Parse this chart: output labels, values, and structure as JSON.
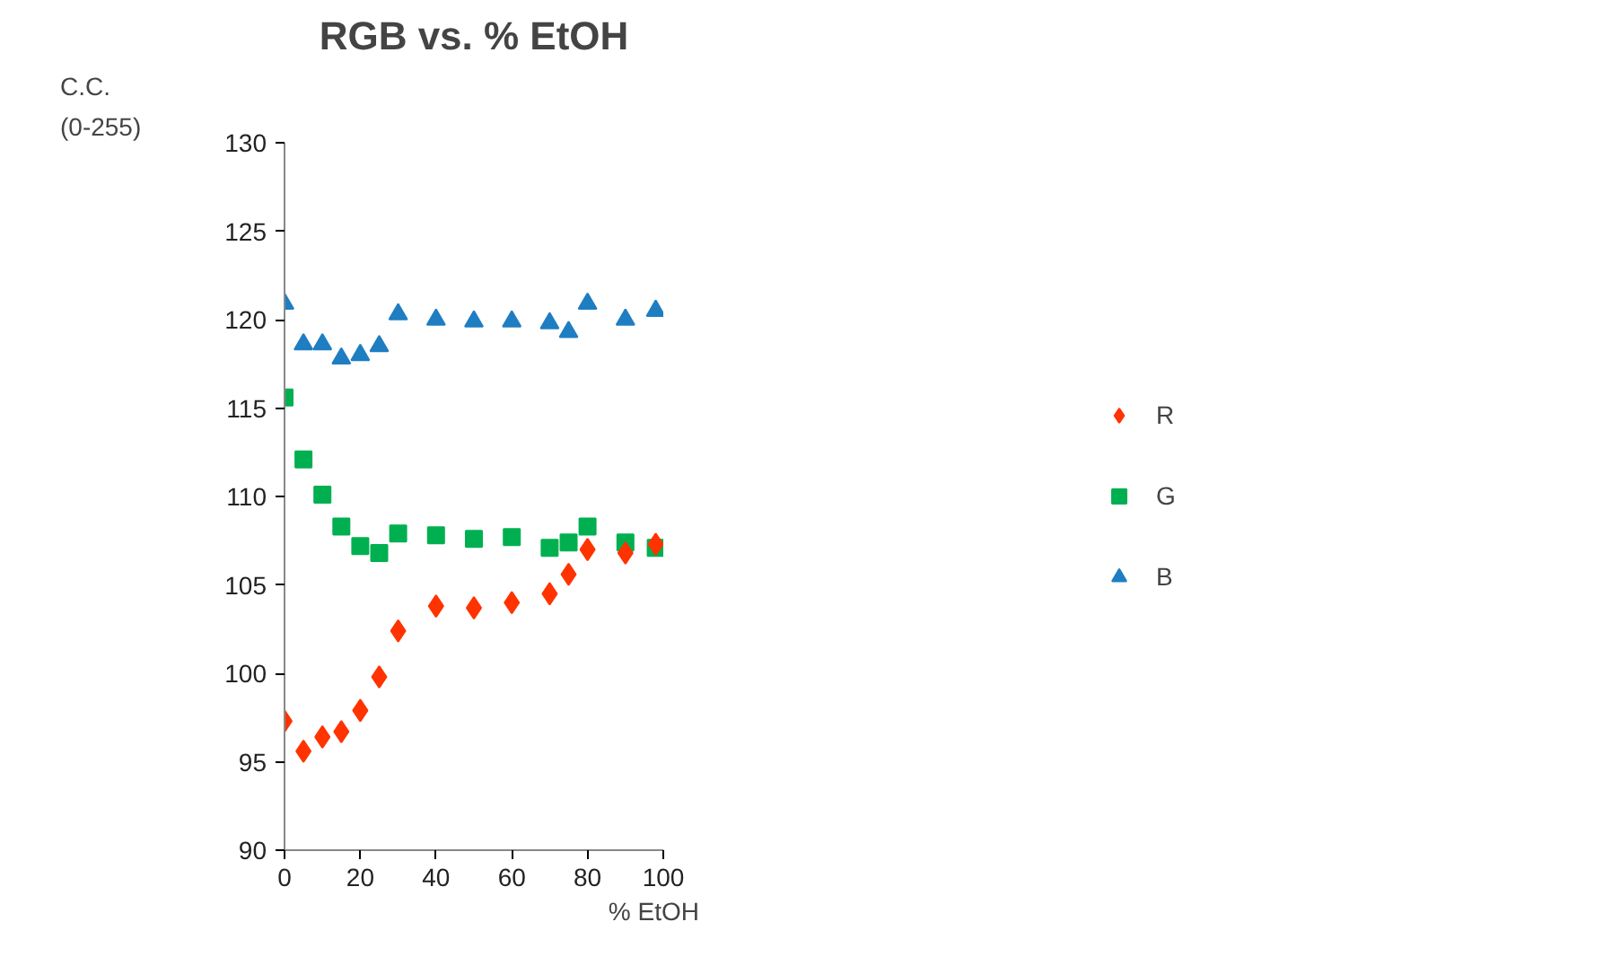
{
  "chart_data": {
    "type": "scatter",
    "title": "RGB vs. % EtOH",
    "xlabel": "% EtOH",
    "ylabel": "C.C. (0-255)",
    "x": [
      0,
      5,
      10,
      15,
      20,
      25,
      30,
      40,
      50,
      60,
      70,
      75,
      80,
      90,
      98
    ],
    "series": [
      {
        "name": "R",
        "color": "#ff3300",
        "marker": "diamond",
        "values": [
          97.3,
          95.6,
          96.4,
          96.7,
          97.9,
          99.8,
          102.4,
          103.8,
          103.7,
          104.0,
          104.5,
          105.6,
          107.0,
          106.8,
          107.3
        ]
      },
      {
        "name": "G",
        "color": "#00b050",
        "marker": "square",
        "values": [
          115.6,
          112.1,
          110.1,
          108.3,
          107.2,
          106.8,
          107.9,
          107.8,
          107.6,
          107.7,
          107.1,
          107.4,
          108.3,
          107.4,
          107.1
        ]
      },
      {
        "name": "B",
        "color": "#1f7ec1",
        "marker": "triangle",
        "values": [
          120.9,
          118.6,
          118.6,
          117.8,
          118.0,
          118.5,
          120.3,
          120.0,
          119.9,
          119.9,
          119.8,
          119.3,
          120.9,
          120.0,
          120.5
        ]
      }
    ],
    "xlim": [
      0,
      100
    ],
    "xticks": [
      0,
      20,
      40,
      60,
      80,
      100
    ],
    "ylim": [
      90,
      130
    ],
    "yticks": [
      90,
      95,
      100,
      105,
      110,
      115,
      120,
      125,
      130
    ],
    "grid": false,
    "legend": "right"
  }
}
